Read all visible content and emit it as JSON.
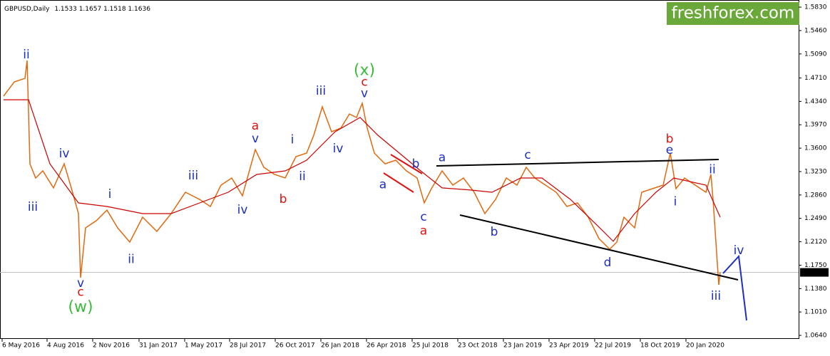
{
  "chart_data": {
    "type": "line",
    "title": "GBPUSD,Daily",
    "ohlc": [
      1.1533,
      1.1657,
      1.1518,
      1.1636
    ],
    "brand": "freshforex.com",
    "last_price": 1.1636,
    "xlim": [
      0,
      1120
    ],
    "ylim": [
      1.0584,
      1.5943
    ],
    "xticks": [
      {
        "value": 3,
        "label": "6 May 2016"
      },
      {
        "value": 66,
        "label": "4 Aug 2016"
      },
      {
        "value": 130,
        "label": "2 Nov 2016"
      },
      {
        "value": 195,
        "label": "31 Jan 2017"
      },
      {
        "value": 259,
        "label": "1 May 2017"
      },
      {
        "value": 322,
        "label": "28 Jul 2017"
      },
      {
        "value": 386,
        "label": "26 Oct 2017"
      },
      {
        "value": 450,
        "label": "26 Jan 2018"
      },
      {
        "value": 514,
        "label": "26 Apr 2018"
      },
      {
        "value": 578,
        "label": "25 Jul 2018"
      },
      {
        "value": 642,
        "label": "23 Oct 2018"
      },
      {
        "value": 706,
        "label": "23 Jan 2019"
      },
      {
        "value": 770,
        "label": "23 Apr 2019"
      },
      {
        "value": 834,
        "label": "22 Jul 2019"
      },
      {
        "value": 898,
        "label": "18 Oct 2019"
      },
      {
        "value": 962,
        "label": "20 Jan 2020"
      }
    ],
    "yticks": [
      {
        "value": 1.583,
        "label": "1.5830"
      },
      {
        "value": 1.546,
        "label": "1.5460"
      },
      {
        "value": 1.509,
        "label": "1.5090"
      },
      {
        "value": 1.471,
        "label": "1.4710"
      },
      {
        "value": 1.434,
        "label": "1.4340"
      },
      {
        "value": 1.397,
        "label": "1.3970"
      },
      {
        "value": 1.36,
        "label": "1.3600"
      },
      {
        "value": 1.323,
        "label": "1.3230"
      },
      {
        "value": 1.286,
        "label": "1.2860"
      },
      {
        "value": 1.249,
        "label": "1.2490"
      },
      {
        "value": 1.212,
        "label": "1.2120"
      },
      {
        "value": 1.175,
        "label": "1.1750"
      },
      {
        "value": 1.138,
        "label": "1.1380"
      },
      {
        "value": 1.101,
        "label": "1.1010"
      },
      {
        "value": 1.064,
        "label": "1.0640"
      }
    ],
    "series": [
      {
        "color": "#e06a10",
        "x": [
          5,
          20,
          35,
          38,
          42,
          50,
          60,
          75,
          90,
          100,
          110,
          113,
          120,
          135,
          150,
          165,
          182,
          200,
          220,
          240,
          260,
          280,
          295,
          310,
          325,
          340,
          358,
          370,
          385,
          400,
          415,
          430,
          440,
          452,
          465,
          478,
          490,
          500,
          508,
          515,
          525,
          540,
          555,
          570,
          585,
          595,
          605,
          620,
          635,
          650,
          665,
          680,
          695,
          710,
          725,
          738,
          750,
          765,
          780,
          795,
          810,
          825,
          840,
          855,
          865,
          875,
          890,
          900,
          915,
          930,
          940,
          948,
          960,
          975,
          990,
          997,
          1000,
          1005,
          1008,
          1010
        ],
        "values": [
          1.4423,
          1.4648,
          1.4704,
          1.4986,
          1.3353,
          1.3128,
          1.3241,
          1.2972,
          1.3353,
          1.2972,
          1.2565,
          1.1552,
          1.234,
          1.2453,
          1.2621,
          1.234,
          1.2115,
          1.2509,
          1.2284,
          1.2565,
          1.2903,
          1.279,
          1.2678,
          1.3016,
          1.3128,
          1.2847,
          1.3578,
          1.3297,
          1.3185,
          1.3128,
          1.3466,
          1.3522,
          1.3804,
          1.4254,
          1.386,
          1.3916,
          1.4141,
          1.4085,
          1.431,
          1.3916,
          1.3522,
          1.3353,
          1.341,
          1.3241,
          1.3128,
          1.2734,
          1.2959,
          1.3241,
          1.3016,
          1.3128,
          1.2903,
          1.2565,
          1.279,
          1.3128,
          1.3016,
          1.3297,
          1.3128,
          1.3016,
          1.2903,
          1.2678,
          1.2734,
          1.2509,
          1.2171,
          1.2002,
          1.2115,
          1.2509,
          1.234,
          1.2903,
          1.2959,
          1.3016,
          1.3522,
          1.2959,
          1.3128,
          1.3016,
          1.2903,
          1.3185,
          1.279,
          1.1946,
          1.1439,
          1.1636
        ]
      },
      {
        "color": "#cc0000",
        "x": [
          5,
          40,
          70,
          110,
          150,
          200,
          240,
          280,
          320,
          360,
          400,
          430,
          470,
          505,
          530,
          560,
          590,
          620,
          660,
          690,
          730,
          760,
          800,
          840,
          860,
          890,
          920,
          945,
          990,
          1010
        ],
        "values": [
          1.4366,
          1.4366,
          1.3353,
          1.2734,
          1.2678,
          1.2565,
          1.2565,
          1.2734,
          1.2903,
          1.3185,
          1.3241,
          1.341,
          1.386,
          1.4085,
          1.3804,
          1.3522,
          1.3241,
          1.2972,
          1.2938,
          1.2903,
          1.3128,
          1.3128,
          1.279,
          1.2353,
          1.2127,
          1.2565,
          1.2903,
          1.3128,
          1.3016,
          1.2509
        ]
      }
    ],
    "annotations": [
      {
        "text": "ii",
        "x": 37,
        "y": 1.5076,
        "color": "#1c2fc4"
      },
      {
        "text": "iv",
        "x": 90,
        "y": 1.351,
        "color": "#1c2fc4"
      },
      {
        "text": "iii",
        "x": 46,
        "y": 1.2666,
        "color": "#1c2fc4"
      },
      {
        "text": "v",
        "x": 113,
        "y": 1.146,
        "color": "#1c2fc4"
      },
      {
        "text": "c",
        "x": 113,
        "y": 1.132,
        "color": "#e01010"
      },
      {
        "text": "(w)",
        "x": 113,
        "y": 1.108,
        "color": "#3cba3c"
      },
      {
        "text": "i",
        "x": 154,
        "y": 1.287,
        "color": "#1c2fc4"
      },
      {
        "text": "ii",
        "x": 184,
        "y": 1.184,
        "color": "#1c2fc4"
      },
      {
        "text": "iii",
        "x": 271,
        "y": 1.316,
        "color": "#1c2fc4"
      },
      {
        "text": "iv",
        "x": 340,
        "y": 1.262,
        "color": "#1c2fc4"
      },
      {
        "text": "a",
        "x": 358,
        "y": 1.395,
        "color": "#e01010"
      },
      {
        "text": "v",
        "x": 358,
        "y": 1.375,
        "color": "#1c2fc4"
      },
      {
        "text": "b",
        "x": 397,
        "y": 1.279,
        "color": "#e01010"
      },
      {
        "text": "i",
        "x": 410,
        "y": 1.373,
        "color": "#1c2fc4"
      },
      {
        "text": "ii",
        "x": 424,
        "y": 1.315,
        "color": "#1c2fc4"
      },
      {
        "text": "iii",
        "x": 450,
        "y": 1.45,
        "color": "#1c2fc4"
      },
      {
        "text": "iv",
        "x": 474,
        "y": 1.359,
        "color": "#1c2fc4"
      },
      {
        "text": "(x)",
        "x": 511,
        "y": 1.482,
        "color": "#3cba3c"
      },
      {
        "text": "c",
        "x": 511,
        "y": 1.464,
        "color": "#e01010"
      },
      {
        "text": "v",
        "x": 511,
        "y": 1.446,
        "color": "#1c2fc4"
      },
      {
        "text": "b",
        "x": 583,
        "y": 1.335,
        "color": "#1c2fc4"
      },
      {
        "text": "a",
        "x": 537,
        "y": 1.302,
        "color": "#1c2fc4"
      },
      {
        "text": "c",
        "x": 594,
        "y": 1.251,
        "color": "#1c2fc4"
      },
      {
        "text": "a",
        "x": 594,
        "y": 1.229,
        "color": "#e01010"
      },
      {
        "text": "a",
        "x": 620,
        "y": 1.345,
        "color": "#1c2fc4"
      },
      {
        "text": "b",
        "x": 693,
        "y": 1.227,
        "color": "#1c2fc4"
      },
      {
        "text": "c",
        "x": 740,
        "y": 1.349,
        "color": "#1c2fc4"
      },
      {
        "text": "d",
        "x": 852,
        "y": 1.179,
        "color": "#1c2fc4"
      },
      {
        "text": "b",
        "x": 939,
        "y": 1.374,
        "color": "#e01010"
      },
      {
        "text": "e",
        "x": 939,
        "y": 1.357,
        "color": "#1c2fc4"
      },
      {
        "text": "i",
        "x": 947,
        "y": 1.275,
        "color": "#1c2fc4"
      },
      {
        "text": "ii",
        "x": 999,
        "y": 1.326,
        "color": "#1c2fc4"
      },
      {
        "text": "iii",
        "x": 1004,
        "y": 1.126,
        "color": "#1c2fc4"
      },
      {
        "text": "iv",
        "x": 1036,
        "y": 1.198,
        "color": "#1c2fc4"
      }
    ]
  }
}
